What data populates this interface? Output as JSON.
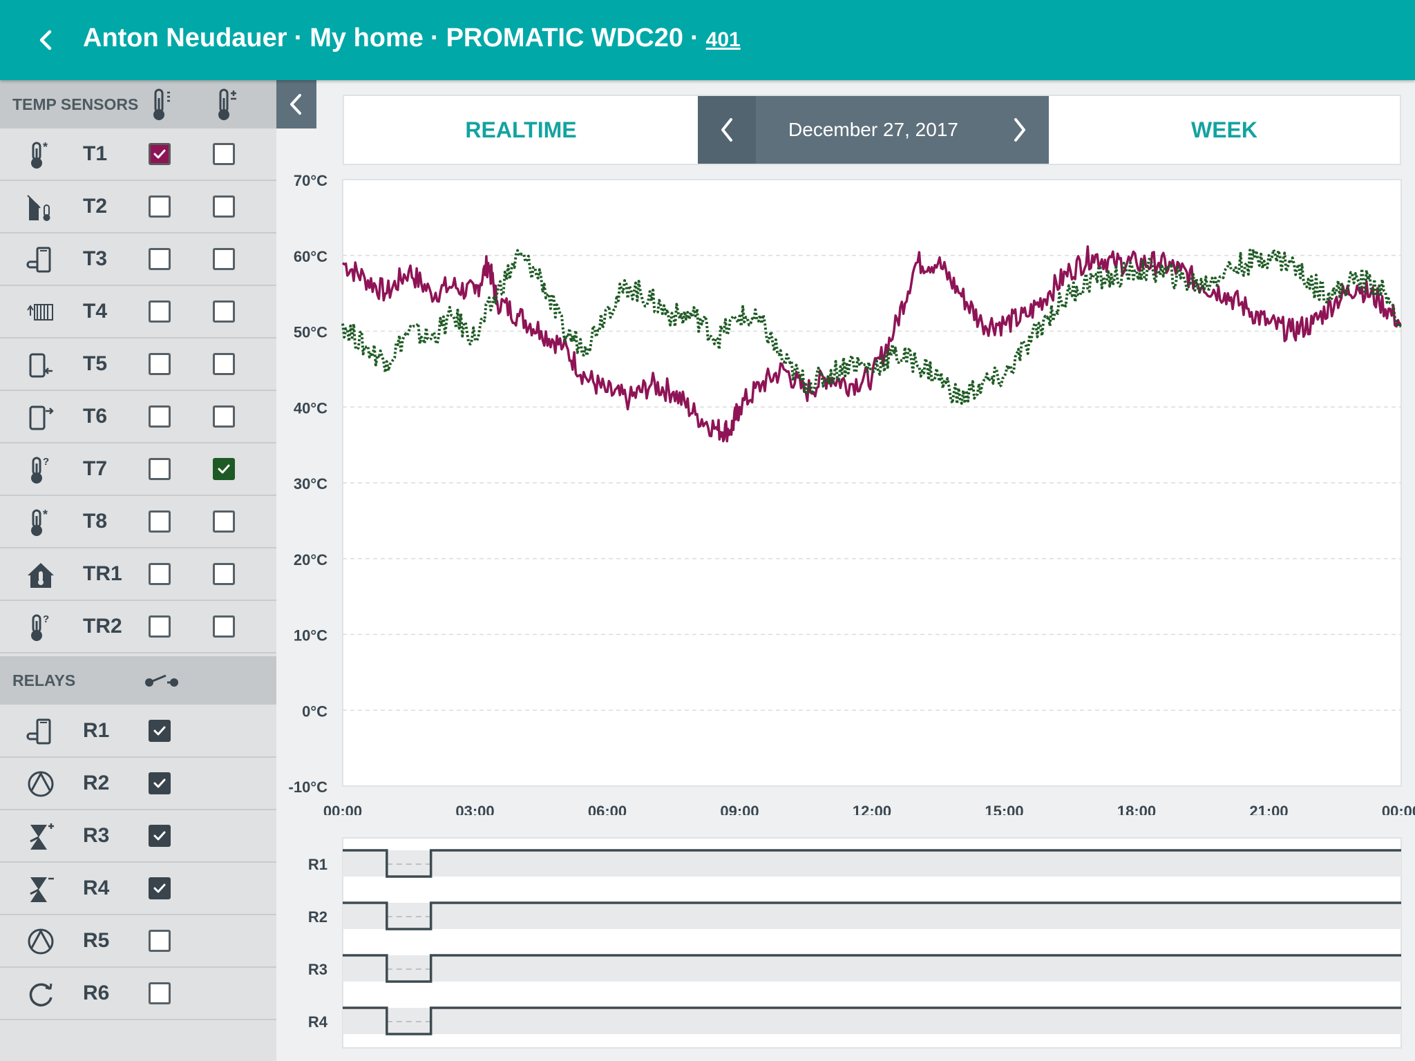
{
  "header": {
    "owner": "Anton Neudauer",
    "home": "My home",
    "device": "PROMATIC WDC20",
    "device_id": "401",
    "separator": "·"
  },
  "sidebar": {
    "temp_header": "TEMP SENSORS",
    "relays_header": "RELAYS",
    "sensors": [
      {
        "name": "T1",
        "icon": "thermometer-star-icon",
        "col1": true,
        "col2": false
      },
      {
        "name": "T2",
        "icon": "collector-thermometer-icon",
        "col1": false,
        "col2": false
      },
      {
        "name": "T3",
        "icon": "boiler-icon",
        "col1": false,
        "col2": false
      },
      {
        "name": "T4",
        "icon": "radiator-icon",
        "col1": false,
        "col2": false
      },
      {
        "name": "T5",
        "icon": "tank-in-icon",
        "col1": false,
        "col2": false
      },
      {
        "name": "T6",
        "icon": "tank-out-icon",
        "col1": false,
        "col2": false
      },
      {
        "name": "T7",
        "icon": "thermometer-question-icon",
        "col1": false,
        "col2": true
      },
      {
        "name": "T8",
        "icon": "thermometer-star-icon",
        "col1": false,
        "col2": false
      },
      {
        "name": "TR1",
        "icon": "house-thermometer-icon",
        "col1": false,
        "col2": false
      },
      {
        "name": "TR2",
        "icon": "thermometer-question-icon",
        "col1": false,
        "col2": false
      }
    ],
    "relays": [
      {
        "name": "R1",
        "icon": "boiler-icon",
        "checked": true
      },
      {
        "name": "R2",
        "icon": "pump-icon",
        "checked": true
      },
      {
        "name": "R3",
        "icon": "valve-plus-icon",
        "checked": true
      },
      {
        "name": "R4",
        "icon": "valve-minus-icon",
        "checked": true
      },
      {
        "name": "R5",
        "icon": "pump-icon",
        "checked": false
      },
      {
        "name": "R6",
        "icon": "circulation-icon",
        "checked": false
      }
    ]
  },
  "tabs": {
    "realtime": "REALTIME",
    "week": "WEEK",
    "date": "December 27, 2017"
  },
  "colors": {
    "header": "#00a8a8",
    "accent": "#13a3a0",
    "series_t1": "#8e1456",
    "series_t7": "#1e5a23",
    "relay_line": "#3d4a52"
  },
  "chart_data": {
    "type": "line",
    "ylim": [
      -10,
      70
    ],
    "y_ticks": [
      "70°C",
      "60°C",
      "50°C",
      "40°C",
      "30°C",
      "20°C",
      "10°C",
      "0°C",
      "-10°C"
    ],
    "x_ticks": [
      "00:00",
      "03:00",
      "06:00",
      "09:00",
      "12:00",
      "15:00",
      "18:00",
      "21:00",
      "00:00"
    ],
    "x_unit": "hours",
    "xlim": [
      0,
      24
    ],
    "grid": true,
    "series": [
      {
        "style": "solid",
        "x": [
          0,
          0.5,
          1,
          1.5,
          2,
          2.5,
          3,
          3.3,
          3.5,
          4,
          4.5,
          5,
          5.5,
          6,
          6.5,
          7,
          7.5,
          8,
          8.5,
          8.8,
          9,
          9.5,
          10,
          10.5,
          11,
          11.5,
          12,
          12.5,
          13,
          13.5,
          14,
          14.5,
          15,
          15.5,
          16,
          16.5,
          17,
          17.5,
          18,
          18.5,
          19,
          19.5,
          20,
          20.5,
          21,
          21.5,
          22,
          22.5,
          23,
          23.5,
          24
        ],
        "y": [
          59,
          57,
          55,
          58,
          55,
          56,
          55,
          59,
          54,
          52,
          50,
          48,
          44,
          42,
          41,
          43,
          42,
          39,
          37,
          37,
          40,
          43,
          45,
          42,
          44,
          43,
          44,
          50,
          59,
          59,
          55,
          51,
          51,
          52,
          55,
          58,
          60,
          59,
          59,
          59,
          58,
          56,
          55,
          53,
          51,
          50,
          51,
          54,
          56,
          54,
          51
        ]
      },
      {
        "style": "dotted",
        "x": [
          0,
          0.5,
          1,
          1.5,
          2,
          2.5,
          3,
          3.5,
          4,
          4.5,
          5,
          5.5,
          6,
          6.5,
          7,
          7.5,
          8,
          8.5,
          9,
          9.5,
          10,
          10.5,
          11,
          11.5,
          12,
          12.5,
          13,
          13.5,
          14,
          14.5,
          15,
          15.5,
          16,
          16.5,
          17,
          17.5,
          18,
          18.5,
          19,
          19.5,
          20,
          20.5,
          21,
          21.5,
          22,
          22.5,
          23,
          23.5,
          24
        ],
        "y": [
          51,
          48,
          46,
          50,
          49,
          52,
          49,
          55,
          60,
          57,
          50,
          48,
          53,
          56,
          54,
          52,
          52,
          49,
          52,
          51,
          46,
          43,
          44,
          46,
          45,
          47,
          46,
          44,
          41,
          43,
          44,
          48,
          52,
          55,
          57,
          57,
          58,
          58,
          57,
          56,
          58,
          59,
          60,
          59,
          56,
          55,
          57,
          56,
          51
        ]
      }
    ]
  },
  "relay_chart": {
    "labels": [
      "R1",
      "R2",
      "R3",
      "R4"
    ],
    "off_start_hours": 1.0,
    "off_end_hours": 2.0
  }
}
